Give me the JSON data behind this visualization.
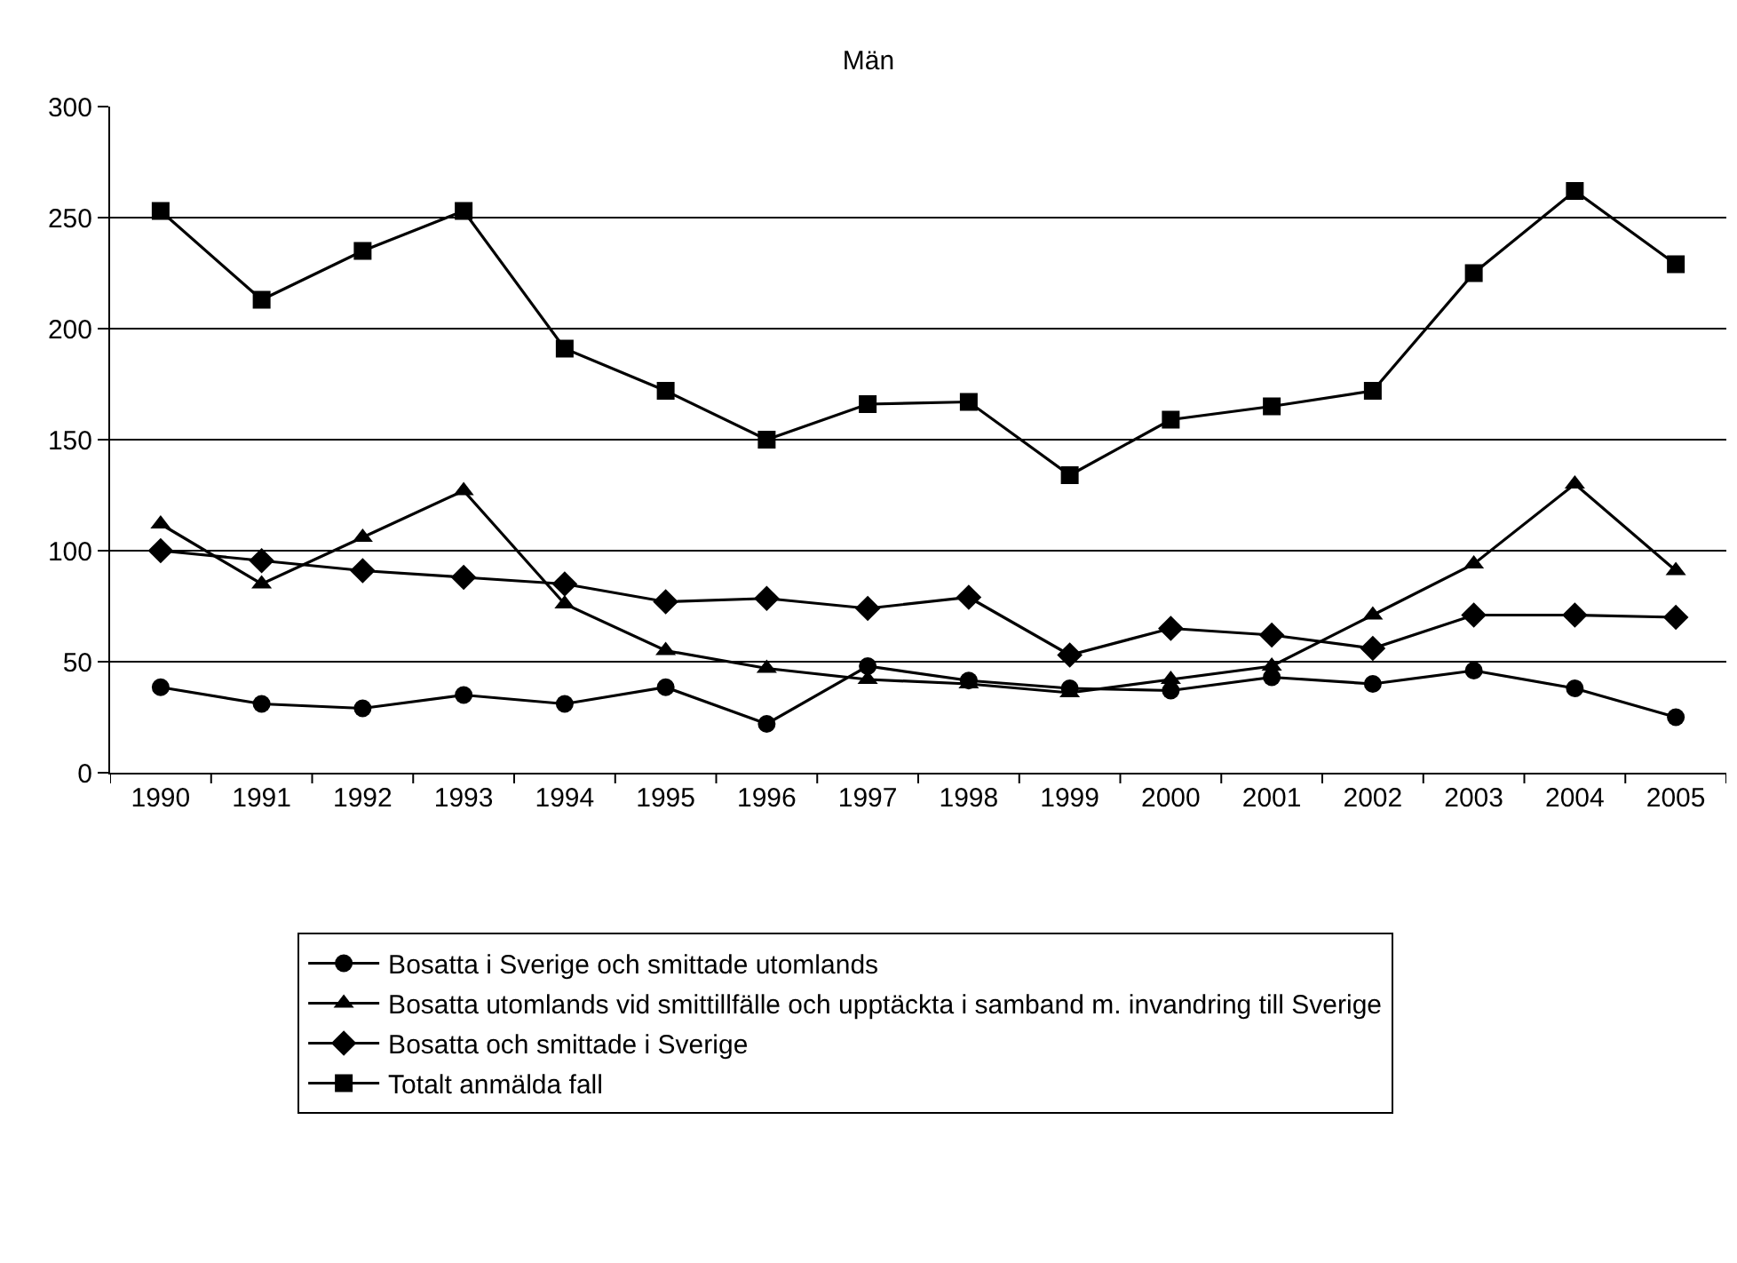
{
  "chart_data": {
    "type": "line",
    "title": "Män",
    "categories": [
      "1990",
      "1991",
      "1992",
      "1993",
      "1994",
      "1995",
      "1996",
      "1997",
      "1998",
      "1999",
      "2000",
      "2001",
      "2002",
      "2003",
      "2004",
      "2005"
    ],
    "series": [
      {
        "name": "Bosatta i Sverige och smittade utomlands",
        "color": "#000000",
        "marker": "circle",
        "values": [
          38.5,
          31,
          29,
          35,
          31,
          38.5,
          22,
          48,
          41.5,
          38,
          37,
          43,
          40,
          46,
          38,
          25
        ]
      },
      {
        "name": "Bosatta utomlands vid smittillfälle och upptäckta i samband m. invandring till Sverige",
        "color": "#000000",
        "marker": "triangle",
        "values": [
          112,
          85,
          106,
          127,
          76,
          55,
          47,
          42,
          40,
          36,
          42,
          48,
          71,
          94,
          130,
          91
        ]
      },
      {
        "name": "Bosatta och smittade i Sverige",
        "color": "#000000",
        "marker": "diamond",
        "values": [
          100,
          95.5,
          91,
          88,
          85,
          77,
          78.5,
          74,
          79,
          53,
          65,
          62,
          56,
          71,
          71,
          70
        ]
      },
      {
        "name": "Totalt anmälda fall",
        "color": "#000000",
        "marker": "square",
        "values": [
          253,
          213,
          235,
          253,
          191,
          172,
          150,
          166,
          167,
          134,
          159,
          165,
          172,
          225,
          262,
          229
        ]
      }
    ],
    "ylim": [
      0,
      300
    ],
    "yticks": [
      0,
      50,
      100,
      150,
      200,
      250,
      300
    ],
    "grid": "y",
    "legend": "bottom",
    "line_style": "solid"
  }
}
